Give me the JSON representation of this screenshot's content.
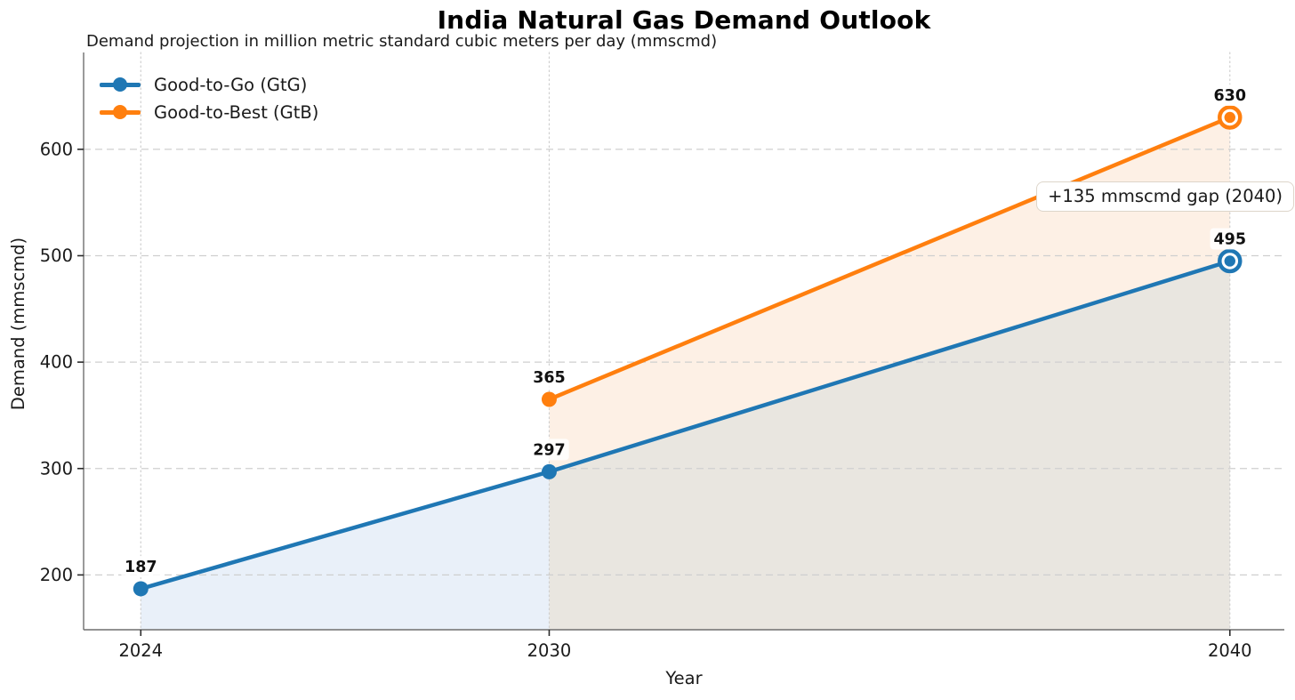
{
  "chart_data": {
    "type": "line",
    "title": "India Natural Gas Demand Outlook",
    "subtitle": "Demand projection in million metric standard cubic meters per day (mmscmd)",
    "xlabel": "Year",
    "ylabel": "Demand (mmscmd)",
    "xlim": [
      2023.16,
      2040.8
    ],
    "ylim": [
      148.5,
      691
    ],
    "xticks": [
      2024,
      2030,
      2040
    ],
    "yticks": [
      200,
      300,
      400,
      500,
      600
    ],
    "grid": {
      "on": true,
      "horizontal_style": "dashed",
      "vertical_style": "dotted",
      "color": "#cfcfcf"
    },
    "legend": {
      "position": "upper-left"
    },
    "series": [
      {
        "name": "Good-to-Go (GtG)",
        "color": "#1f77b4",
        "x": [
          2024,
          2030,
          2040
        ],
        "values": [
          187,
          297,
          495
        ],
        "marker": "circle",
        "end_marker": "ring",
        "value_labels": true
      },
      {
        "name": "Good-to-Best (GtB)",
        "color": "#ff7f0e",
        "x": [
          2030,
          2040
        ],
        "values": [
          365,
          630
        ],
        "marker": "circle",
        "end_marker": "ring",
        "value_labels": true
      }
    ],
    "fills": [
      {
        "name": "gtg-area-2024-2030",
        "color": "#e9f0f9",
        "upper_series": 0,
        "from": 2024,
        "to": 2030,
        "lower": "baseline"
      },
      {
        "name": "gtg-area-2030-2040",
        "color": "#e9e6e0",
        "upper_series": 0,
        "from": 2030,
        "to": 2040,
        "lower": "baseline"
      },
      {
        "name": "gap-area-2030-2040",
        "color": "#fdf0e5",
        "upper_series": 1,
        "from": 2030,
        "to": 2040,
        "lower_series": 0
      }
    ],
    "annotations": [
      {
        "text": "+135 mmscmd gap (2040)",
        "x": 2039.05,
        "y": 556
      }
    ]
  }
}
